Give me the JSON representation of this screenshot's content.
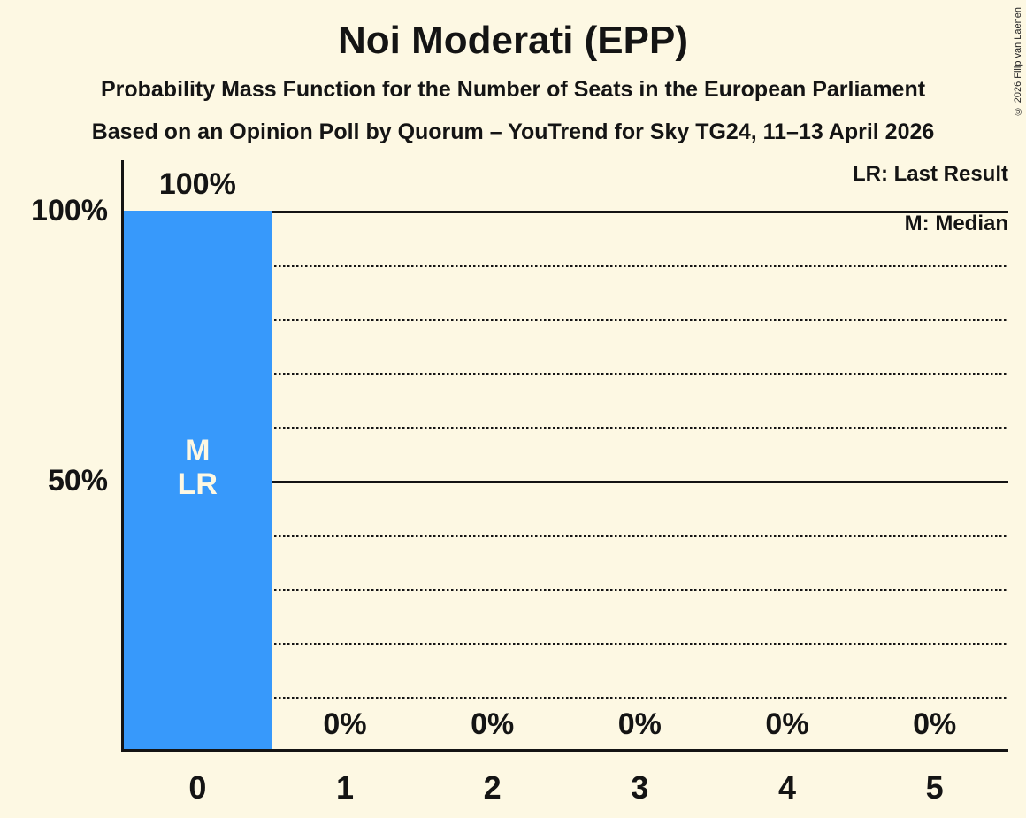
{
  "copyright": "© 2026 Filip van Laenen",
  "chart_data": {
    "type": "bar",
    "title": "Noi Moderati (EPP)",
    "subtitle": "Probability Mass Function for the Number of Seats in the European Parliament",
    "source_line": "Based on an Opinion Poll by Quorum – YouTrend for Sky TG24, 11–13 April 2026",
    "xlabel": "",
    "ylabel": "",
    "categories": [
      "0",
      "1",
      "2",
      "3",
      "4",
      "5"
    ],
    "values": [
      100,
      0,
      0,
      0,
      0,
      0
    ],
    "bar_value_labels": [
      "100%",
      "0%",
      "0%",
      "0%",
      "0%",
      "0%"
    ],
    "ylim": [
      0,
      100
    ],
    "y_ticks": [
      {
        "value": 100,
        "label": "100%"
      },
      {
        "value": 50,
        "label": "50%"
      }
    ],
    "gridlines": {
      "solid": [
        100,
        50
      ],
      "dotted": [
        90,
        80,
        70,
        60,
        40,
        30,
        20,
        10
      ]
    },
    "legend": [
      {
        "label": "LR: Last Result"
      },
      {
        "label": "M: Median"
      }
    ],
    "legend_position": "top-right",
    "bar_annotations": [
      {
        "category": "0",
        "lines": [
          "M",
          "LR"
        ]
      }
    ],
    "colors": {
      "background": "#FDF8E3",
      "bar": "#3799FB",
      "text": "#141414",
      "bar_label_text": "#FDF8E3"
    }
  }
}
